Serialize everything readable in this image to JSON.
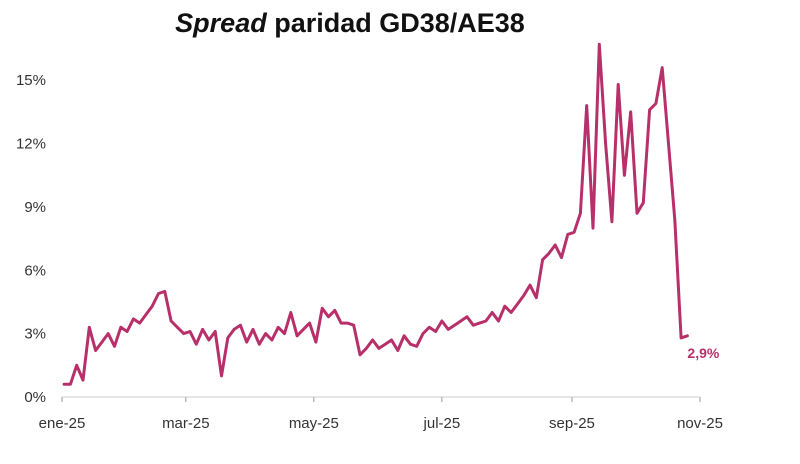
{
  "chart_data": {
    "type": "line",
    "title_emphasis": "Spread",
    "title_rest": " paridad GD38/AE38",
    "xlabel": "",
    "ylabel": "",
    "x_ticks": [
      "ene-25",
      "mar-25",
      "may-25",
      "jul-25",
      "sep-25",
      "nov-25"
    ],
    "y_ticks": [
      "0%",
      "3%",
      "6%",
      "9%",
      "12%",
      "15%"
    ],
    "ylim": [
      0,
      17
    ],
    "grid": false,
    "series_color": "#b8306a",
    "end_label": "2,9%",
    "x": [
      "2025-01-02",
      "2025-01-05",
      "2025-01-08",
      "2025-01-11",
      "2025-01-14",
      "2025-01-17",
      "2025-01-20",
      "2025-01-23",
      "2025-01-26",
      "2025-01-29",
      "2025-02-01",
      "2025-02-04",
      "2025-02-07",
      "2025-02-10",
      "2025-02-13",
      "2025-02-16",
      "2025-02-19",
      "2025-02-22",
      "2025-02-25",
      "2025-02-28",
      "2025-03-03",
      "2025-03-06",
      "2025-03-09",
      "2025-03-12",
      "2025-03-15",
      "2025-03-18",
      "2025-03-21",
      "2025-03-24",
      "2025-03-27",
      "2025-03-30",
      "2025-04-02",
      "2025-04-05",
      "2025-04-08",
      "2025-04-11",
      "2025-04-14",
      "2025-04-17",
      "2025-04-20",
      "2025-04-23",
      "2025-04-26",
      "2025-04-29",
      "2025-05-02",
      "2025-05-05",
      "2025-05-08",
      "2025-05-11",
      "2025-05-14",
      "2025-05-17",
      "2025-05-20",
      "2025-05-23",
      "2025-05-26",
      "2025-05-29",
      "2025-06-01",
      "2025-06-04",
      "2025-06-07",
      "2025-06-10",
      "2025-06-13",
      "2025-06-16",
      "2025-06-19",
      "2025-06-22",
      "2025-06-25",
      "2025-06-28",
      "2025-07-01",
      "2025-07-04",
      "2025-07-07",
      "2025-07-10",
      "2025-07-13",
      "2025-07-16",
      "2025-07-19",
      "2025-07-22",
      "2025-07-25",
      "2025-07-28",
      "2025-07-31",
      "2025-08-03",
      "2025-08-06",
      "2025-08-09",
      "2025-08-12",
      "2025-08-15",
      "2025-08-18",
      "2025-08-21",
      "2025-08-24",
      "2025-08-27",
      "2025-08-30",
      "2025-09-02",
      "2025-09-05",
      "2025-09-08",
      "2025-09-11",
      "2025-09-14",
      "2025-09-17",
      "2025-09-20",
      "2025-09-23",
      "2025-09-26",
      "2025-09-29",
      "2025-10-02",
      "2025-10-05",
      "2025-10-08",
      "2025-10-11",
      "2025-10-14",
      "2025-10-17",
      "2025-10-20",
      "2025-10-23",
      "2025-10-26"
    ],
    "values": [
      0.6,
      0.6,
      1.5,
      0.8,
      3.3,
      2.2,
      2.6,
      3.0,
      2.4,
      3.3,
      3.1,
      3.7,
      3.5,
      3.9,
      4.3,
      4.9,
      5.0,
      3.6,
      3.3,
      3.0,
      3.1,
      2.5,
      3.2,
      2.7,
      3.1,
      1.0,
      2.8,
      3.2,
      3.4,
      2.6,
      3.2,
      2.5,
      3.0,
      2.7,
      3.3,
      3.0,
      4.0,
      2.9,
      3.2,
      3.5,
      2.6,
      4.2,
      3.8,
      4.1,
      3.5,
      3.5,
      3.4,
      2.0,
      2.3,
      2.7,
      2.3,
      2.5,
      2.7,
      2.2,
      2.9,
      2.5,
      2.4,
      3.0,
      3.3,
      3.1,
      3.6,
      3.2,
      3.4,
      3.6,
      3.8,
      3.4,
      3.5,
      3.6,
      4.0,
      3.6,
      4.3,
      4.0,
      4.4,
      4.8,
      5.3,
      4.7,
      6.5,
      6.8,
      7.2,
      6.6,
      7.7,
      7.8,
      8.7,
      13.8,
      8.0,
      16.7,
      12.0,
      8.3,
      14.8,
      10.5,
      13.5,
      8.7,
      9.2,
      13.6,
      13.9,
      15.6,
      12.0,
      8.4,
      2.8,
      2.9
    ],
    "end_value": 2.9
  }
}
